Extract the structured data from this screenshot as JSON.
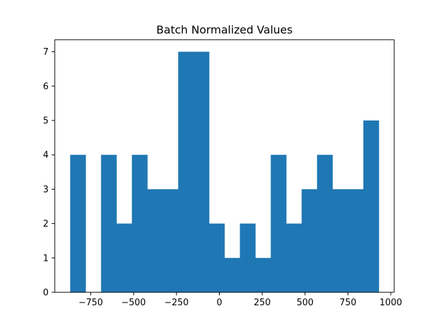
{
  "chart_data": {
    "type": "bar",
    "title": "Batch Normalized Values",
    "xlabel": "",
    "ylabel": "",
    "bin_edges": [
      -870,
      -825,
      -780,
      -735,
      -690,
      -645,
      -600,
      -555,
      -510,
      -465,
      -420,
      -375,
      -330,
      -285,
      -240,
      -195,
      -150,
      -105,
      -60,
      -15,
      30,
      75,
      120,
      165,
      210,
      255,
      300,
      345,
      390,
      435,
      480,
      525,
      570,
      615,
      660,
      705,
      750,
      795,
      840,
      885,
      930
    ],
    "counts": [
      4,
      4,
      0,
      0,
      4,
      4,
      2,
      2,
      4,
      4,
      3,
      3,
      3,
      3,
      7,
      7,
      7,
      7,
      2,
      2,
      1,
      1,
      2,
      2,
      1,
      1,
      4,
      4,
      2,
      2,
      3,
      3,
      4,
      4,
      3,
      3,
      3,
      3,
      5,
      5
    ],
    "xlim": [
      -960,
      1020
    ],
    "ylim": [
      0,
      7.35
    ],
    "xticks": [
      -750,
      -500,
      -250,
      0,
      250,
      500,
      750,
      1000
    ],
    "xtick_labels": [
      "−750",
      "−500",
      "−250",
      "0",
      "250",
      "500",
      "750",
      "1000"
    ],
    "yticks": [
      0,
      1,
      2,
      3,
      4,
      5,
      6,
      7
    ],
    "ytick_labels": [
      "0",
      "1",
      "2",
      "3",
      "4",
      "5",
      "6",
      "7"
    ],
    "grid": false,
    "color": "#1f77b4"
  }
}
